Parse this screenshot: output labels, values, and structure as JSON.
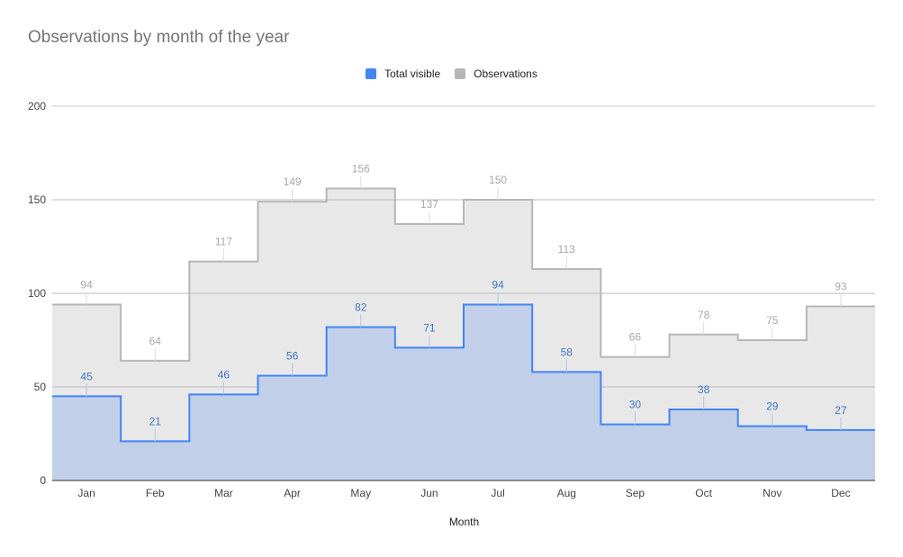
{
  "colors": {
    "total_visible": "#4285f4",
    "observations": "#b7b7b7",
    "total_fill": "#c2cfe8",
    "obs_fill": "#e8e8e8"
  },
  "chart_data": {
    "type": "area",
    "step": true,
    "title": "Observations by month of the year",
    "xlabel": "Month",
    "ylabel": "",
    "ylim": [
      0,
      200
    ],
    "yticks": [
      0,
      50,
      100,
      150,
      200
    ],
    "categories": [
      "Jan",
      "Feb",
      "Mar",
      "Apr",
      "May",
      "Jun",
      "Jul",
      "Aug",
      "Sep",
      "Oct",
      "Nov",
      "Dec"
    ],
    "legend_position": "top",
    "grid": true,
    "series": [
      {
        "name": "Total visible",
        "values": [
          45,
          21,
          46,
          56,
          82,
          71,
          94,
          58,
          30,
          38,
          29,
          27
        ]
      },
      {
        "name": "Observations",
        "values": [
          94,
          64,
          117,
          149,
          156,
          137,
          150,
          113,
          66,
          78,
          75,
          93
        ]
      }
    ]
  }
}
